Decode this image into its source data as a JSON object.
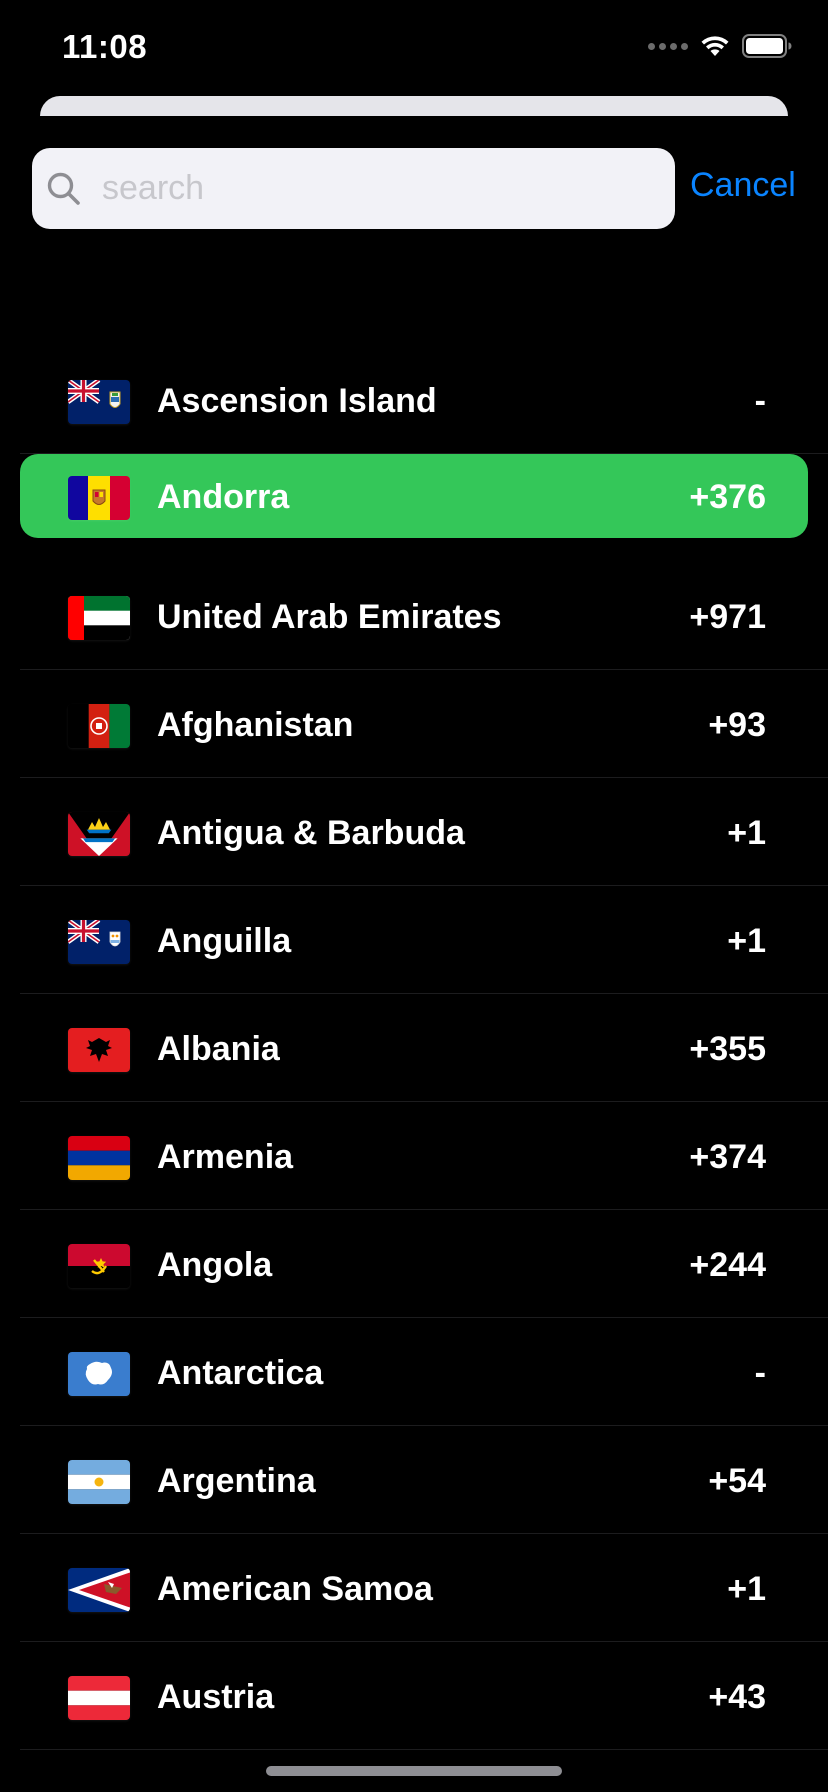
{
  "status_bar": {
    "time": "11:08"
  },
  "search": {
    "placeholder": "search",
    "value": "",
    "cancel_label": "Cancel"
  },
  "colors": {
    "accent": "#0a84ff",
    "selected_row": "#34c759",
    "background": "#000000"
  },
  "countries": [
    {
      "name": "Ascension Island",
      "code": "-",
      "flag": "ascension-island-flag-icon",
      "selected": false
    },
    {
      "name": "Andorra",
      "code": "+376",
      "flag": "andorra-flag-icon",
      "selected": true
    },
    {
      "name": "United Arab Emirates",
      "code": "+971",
      "flag": "uae-flag-icon",
      "selected": false
    },
    {
      "name": "Afghanistan",
      "code": "+93",
      "flag": "afghanistan-flag-icon",
      "selected": false
    },
    {
      "name": "Antigua & Barbuda",
      "code": "+1",
      "flag": "antigua-barbuda-flag-icon",
      "selected": false
    },
    {
      "name": "Anguilla",
      "code": "+1",
      "flag": "anguilla-flag-icon",
      "selected": false
    },
    {
      "name": "Albania",
      "code": "+355",
      "flag": "albania-flag-icon",
      "selected": false
    },
    {
      "name": "Armenia",
      "code": "+374",
      "flag": "armenia-flag-icon",
      "selected": false
    },
    {
      "name": "Angola",
      "code": "+244",
      "flag": "angola-flag-icon",
      "selected": false
    },
    {
      "name": "Antarctica",
      "code": "-",
      "flag": "antarctica-flag-icon",
      "selected": false
    },
    {
      "name": "Argentina",
      "code": "+54",
      "flag": "argentina-flag-icon",
      "selected": false
    },
    {
      "name": "American Samoa",
      "code": "+1",
      "flag": "american-samoa-flag-icon",
      "selected": false
    },
    {
      "name": "Austria",
      "code": "+43",
      "flag": "austria-flag-icon",
      "selected": false
    }
  ]
}
